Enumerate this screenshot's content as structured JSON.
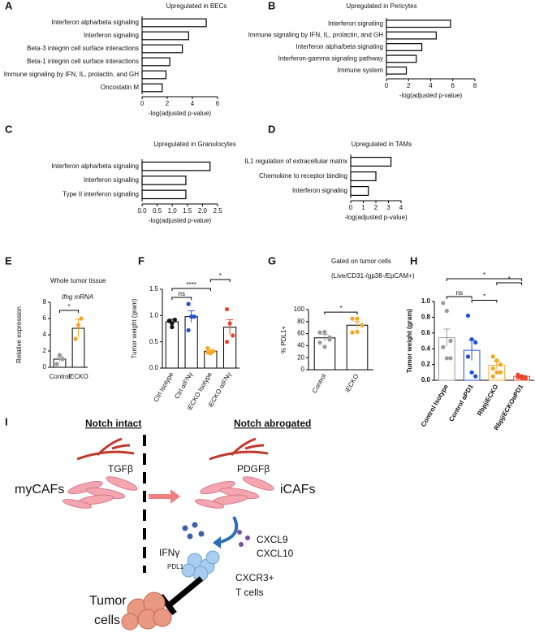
{
  "chart_data": [
    {
      "type": "barh",
      "panel": "A",
      "title": "Upregulated in BECs",
      "xlabel": "-log(adjusted p-value)",
      "categories": [
        "Interferon alpha/beta signaling",
        "Interferon signaling",
        "Beta-3 integrin cell surface interactions",
        "Beta-1 integrin cell surface interactions",
        "Immune signaling by IFN, IL, prolactin, and GH",
        "Oncostatin M"
      ],
      "values": [
        5.1,
        3.7,
        3.2,
        2.2,
        1.9,
        1.6
      ],
      "xlim": [
        0,
        6
      ],
      "xticks": [
        0,
        2,
        4,
        6
      ]
    },
    {
      "type": "barh",
      "panel": "B",
      "title": "Upregulated in Pericytes",
      "xlabel": "-log(adjusted p-value)",
      "categories": [
        "Interferon signaling",
        "Immune signaling by IFN, IL, prolactin, and GH",
        "Interferon alpha/beta signaling",
        "Interferon-gamma signaling pathway",
        "Immune system"
      ],
      "values": [
        5.8,
        4.5,
        3.2,
        2.7,
        1.8
      ],
      "xlim": [
        0,
        8
      ],
      "xticks": [
        0,
        2,
        4,
        6,
        8
      ]
    },
    {
      "type": "barh",
      "panel": "C",
      "title": "Upregulated in Granulocytes",
      "xlabel": "-log(adjusted p-value)",
      "categories": [
        "Interferon alpha/beta signaling",
        "Interferon signaling",
        "Type II interferon signaling"
      ],
      "values": [
        2.25,
        1.45,
        1.45
      ],
      "xlim": [
        0,
        2.5
      ],
      "xticks": [
        {
          "value": 0,
          "label": "0.0"
        },
        0.5,
        {
          "value": 1,
          "label": "1.0"
        },
        1.5,
        {
          "value": 2,
          "label": "2.0"
        },
        2.5
      ]
    },
    {
      "type": "barh",
      "panel": "D",
      "title": "Upregulated in TAMs",
      "xlabel": "-log(adjusted p-value)",
      "categories": [
        "IL1 regulation of extracellular matrix",
        "Chemokine to receptor binding",
        "Interferon signaling"
      ],
      "values": [
        3.2,
        2.0,
        1.4
      ],
      "xlim": [
        0,
        4
      ],
      "xticks": [
        0,
        1,
        2,
        3,
        4
      ]
    },
    {
      "type": "bar",
      "panel": "E",
      "title": "Whole tumor tissue",
      "subtitle": "Ifng mRNA",
      "ylabel": "Relative expression",
      "categories": [
        "Control",
        "iECKO"
      ],
      "values": [
        1.0,
        4.8
      ],
      "errors": [
        0.3,
        1.1
      ],
      "points": [
        [
          0.4,
          1.5,
          1.0
        ],
        [
          3.5,
          5.2,
          6.0
        ]
      ],
      "colors": [
        "#9a9a9a",
        "#f5a623"
      ],
      "ylim": [
        0,
        8
      ],
      "yticks": [
        0,
        2,
        4,
        6,
        8
      ],
      "comparisons": [
        {
          "pair": [
            0,
            1
          ],
          "label": "*"
        }
      ]
    },
    {
      "type": "bar",
      "panel": "F",
      "ylabel": "Tumor weight (gram)",
      "categories": [
        "Ctrl Isotype",
        "Ctrl αIFNγ",
        "iECKO Isotype",
        "iECKO αIFNγ"
      ],
      "values": [
        0.88,
        0.98,
        0.32,
        0.78
      ],
      "errors": [
        0.05,
        0.11,
        0.03,
        0.14
      ],
      "points": [
        [
          0.9,
          0.85,
          0.92,
          0.9,
          0.78
        ],
        [
          1.22,
          0.98,
          0.98,
          0.72
        ],
        [
          0.38,
          0.3,
          0.32,
          0.3,
          0.28
        ],
        [
          1.12,
          0.85,
          0.62,
          0.5
        ]
      ],
      "colors": [
        "#111111",
        "#1f4fd6",
        "#f5a623",
        "#e8452c"
      ],
      "ylim": [
        0,
        1.5
      ],
      "yticks": [
        {
          "value": 0,
          "label": "0.0"
        },
        0.5,
        {
          "value": 1,
          "label": "1.0"
        },
        1.5
      ],
      "comparisons": [
        {
          "pair": [
            0,
            1
          ],
          "label": "ns"
        },
        {
          "pair": [
            0,
            2
          ],
          "label": "****"
        },
        {
          "pair": [
            2,
            3
          ],
          "label": "*"
        }
      ]
    },
    {
      "type": "bar",
      "panel": "G",
      "title": "Gated on tumor cells",
      "subtitle": "(Live/CD31-/gp38-/EpCAM+)",
      "ylabel": "% PDL1+",
      "categories": [
        "Control",
        "iECKO"
      ],
      "values": [
        53,
        74
      ],
      "errors": [
        6,
        6
      ],
      "points": [
        [
          62,
          63,
          50,
          45,
          38,
          54
        ],
        [
          85,
          85,
          74,
          62,
          63
        ]
      ],
      "colors": [
        "#9a9a9a",
        "#f5a623"
      ],
      "ylim": [
        0,
        100
      ],
      "yticks": [
        0,
        20,
        40,
        60,
        80,
        100
      ],
      "comparisons": [
        {
          "pair": [
            0,
            1
          ],
          "label": "*"
        }
      ]
    },
    {
      "type": "bar",
      "panel": "H",
      "ylabel": "Tumor weight (gram)",
      "categories": [
        "Control Isotype",
        "Control αPD1",
        "RbpjiECKO",
        "RbpjiECKOαPD1"
      ],
      "values": [
        0.54,
        0.38,
        0.19,
        0.05
      ],
      "errors": [
        0.11,
        0.13,
        0.05,
        0.01
      ],
      "points": [
        [
          0.98,
          0.88,
          0.5,
          0.42,
          0.28,
          0.28
        ],
        [
          0.82,
          0.52,
          0.48,
          0.3,
          0.1,
          0.05
        ],
        [
          0.3,
          0.25,
          0.2,
          0.15,
          0.1,
          0.1,
          0.05
        ],
        [
          0.07,
          0.05,
          0.04,
          0.04,
          0.03,
          0.02
        ]
      ],
      "colors": [
        "#9a9a9a",
        "#1f4fd6",
        "#f5a623",
        "#e8452c"
      ],
      "edge_by_category": true,
      "ylim": [
        0,
        1.0
      ],
      "yticks": [
        {
          "value": 0,
          "label": "0.0"
        },
        {
          "value": 0.2,
          "label": "0.2"
        },
        {
          "value": 0.4,
          "label": "0.4"
        },
        {
          "value": 0.6,
          "label": "0.6"
        },
        {
          "value": 0.8,
          "label": "0.8"
        },
        {
          "value": 1,
          "label": "1.0"
        }
      ],
      "comparisons": [
        {
          "pair": [
            0,
            1
          ],
          "label": "ns"
        },
        {
          "pair": [
            1,
            2
          ],
          "label": "*"
        },
        {
          "pair": [
            0,
            3
          ],
          "label": "*"
        },
        {
          "pair": [
            2,
            3
          ],
          "label": "*"
        }
      ]
    }
  ],
  "diagram": {
    "panel": "I",
    "left_title": "Notch intact",
    "right_title": "Notch abrogated",
    "mycafs": "myCAFs",
    "tgfb": "TGFβ",
    "pdgfb": "PDGFβ",
    "icafs": "iCAFs",
    "ifng": "IFNγ",
    "cxcl9": "CXCL9",
    "cxcl10": "CXCL10",
    "pdl1": "PDL1",
    "cxcr3": "CXCR3+",
    "tcells": "T cells",
    "tumor": "Tumor",
    "cells": "cells"
  }
}
